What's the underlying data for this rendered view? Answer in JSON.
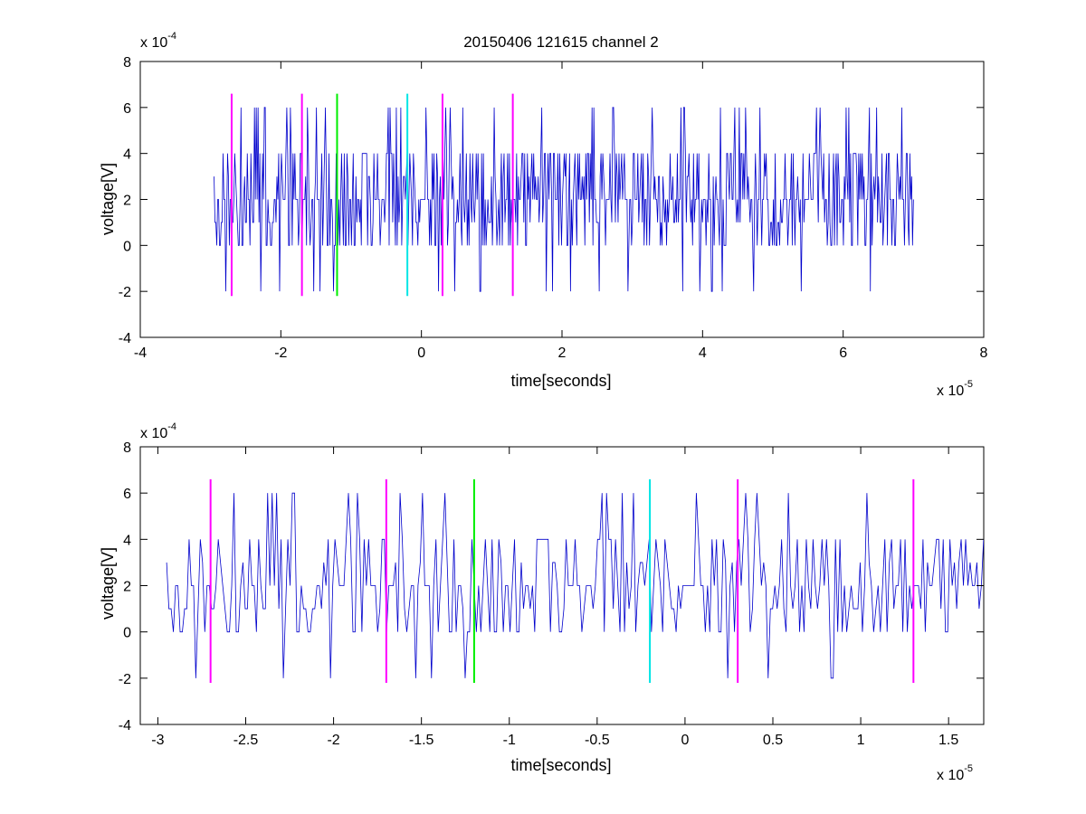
{
  "chart_data": [
    {
      "type": "line",
      "title": "20150406 121615 channel 2",
      "xlabel": "time[seconds]",
      "ylabel": "voltage[V]",
      "x_exponent": {
        "base": "x 10",
        "power": "-5"
      },
      "y_exponent": {
        "base": "x 10",
        "power": "-4"
      },
      "xlim": [
        -4,
        8
      ],
      "ylim": [
        -4,
        8
      ],
      "x_ticks": [
        -4,
        -2,
        0,
        2,
        4,
        6,
        8
      ],
      "x_tick_labels": [
        "-4",
        "-2",
        "0",
        "2",
        "4",
        "6",
        "8"
      ],
      "y_ticks": [
        -4,
        -2,
        0,
        2,
        4,
        6,
        8
      ],
      "y_tick_labels": [
        "-4",
        "-2",
        "0",
        "2",
        "4",
        "6",
        "8"
      ],
      "grid": false,
      "series": [
        {
          "color": "#0000cc",
          "x_range": [
            -2.95,
            7.0
          ],
          "levels": [
            -2,
            0,
            1,
            2,
            3,
            4,
            6
          ],
          "baseline": 2,
          "sample_count": 780,
          "description_of_values": "quantized noise mostly between 0 and 4, occasional spikes to 6 and -2"
        }
      ],
      "markers": [
        {
          "x": -2.7,
          "color": "#ff00ff"
        },
        {
          "x": -1.7,
          "color": "#ff00ff"
        },
        {
          "x": -1.2,
          "color": "#00ee00"
        },
        {
          "x": -0.2,
          "color": "#00e5e5"
        },
        {
          "x": 0.3,
          "color": "#ff00ff"
        },
        {
          "x": 1.3,
          "color": "#ff00ff"
        }
      ],
      "marker_y_range": [
        -2.2,
        6.6
      ]
    },
    {
      "type": "line",
      "title": "",
      "xlabel": "time[seconds]",
      "ylabel": "voltage[V]",
      "x_exponent": {
        "base": "x 10",
        "power": "-5"
      },
      "y_exponent": {
        "base": "x 10",
        "power": "-4"
      },
      "xlim": [
        -3.1,
        1.7
      ],
      "ylim": [
        -4,
        8
      ],
      "x_ticks": [
        -3,
        -2.5,
        -2,
        -1.5,
        -1,
        -0.5,
        0,
        0.5,
        1,
        1.5
      ],
      "x_tick_labels": [
        "-3",
        "-2.5",
        "-2",
        "-1.5",
        "-1",
        "-0.5",
        "0",
        "0.5",
        "1",
        "1.5"
      ],
      "y_ticks": [
        -4,
        -2,
        0,
        2,
        4,
        6,
        8
      ],
      "y_tick_labels": [
        "-4",
        "-2",
        "0",
        "2",
        "4",
        "6",
        "8"
      ],
      "grid": false,
      "series": [
        {
          "color": "#0000cc",
          "x_range": [
            -2.95,
            1.7
          ],
          "levels": [
            -2,
            0,
            1,
            2,
            3,
            4,
            6
          ],
          "baseline": 2,
          "sample_count": 470,
          "description_of_values": "same waveform, zoomed time window"
        }
      ],
      "markers": [
        {
          "x": -2.7,
          "color": "#ff00ff"
        },
        {
          "x": -1.7,
          "color": "#ff00ff"
        },
        {
          "x": -1.2,
          "color": "#00ee00"
        },
        {
          "x": -0.2,
          "color": "#00e5e5"
        },
        {
          "x": 0.3,
          "color": "#ff00ff"
        },
        {
          "x": 1.3,
          "color": "#ff00ff"
        }
      ],
      "marker_y_range": [
        -2.2,
        6.6
      ]
    }
  ]
}
